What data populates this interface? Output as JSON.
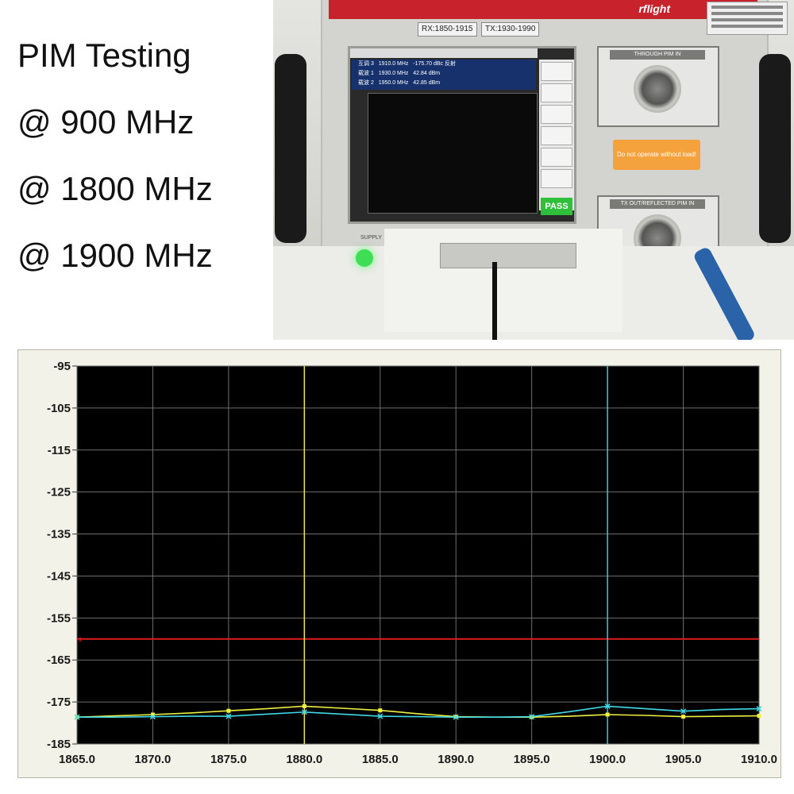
{
  "caption": {
    "lines": [
      "PIM Testing",
      "@ 900 MHz",
      "@ 1800 MHz",
      "@ 1900 MHz"
    ]
  },
  "photo": {
    "brand": "rflight",
    "band_rx": "RX:1850-1915",
    "band_tx": "TX:1930-1990",
    "screen_rows": [
      {
        "label": "互调 3",
        "freq": "1910.0 MHz",
        "value": "-175.70 dBc",
        "mode": "反射"
      },
      {
        "label": "载波 1",
        "freq": "1930.0 MHz",
        "value": "42.84 dBm",
        "mode": ""
      },
      {
        "label": "载波 2",
        "freq": "1950.0 MHz",
        "value": "42.85 dBm",
        "mode": ""
      }
    ],
    "pass_label": "PASS",
    "port_through": "THROUGH PIM IN",
    "port_tx": "TX OUT/REFLECTED PIM IN",
    "warning": "Do not operate without load!",
    "supply_label": "SUPPLY"
  },
  "chart_data": {
    "type": "line",
    "xlim": [
      1865.0,
      1910.0
    ],
    "ylim": [
      -185,
      -95
    ],
    "xticks": [
      "1865.0",
      "1870.0",
      "1875.0",
      "1880.0",
      "1885.0",
      "1890.0",
      "1895.0",
      "1900.0",
      "1905.0",
      "1910.0"
    ],
    "yticks": [
      "-95",
      "-105",
      "-115",
      "-125",
      "-135",
      "-145",
      "-155",
      "-165",
      "-175",
      "-185"
    ],
    "grid": true,
    "background": "#000000",
    "limit_line": {
      "y": -160,
      "color": "#e01b1b",
      "marker_label": "3"
    },
    "markers": [
      {
        "x": 1880.0,
        "color": "#e8e84a"
      },
      {
        "x": 1900.0,
        "color": "#3fc6d8"
      }
    ],
    "series": [
      {
        "color": "#f0f040",
        "x": [
          1865.0,
          1867.5,
          1870.0,
          1872.5,
          1875.0,
          1877.5,
          1880.0,
          1882.5,
          1885.0,
          1887.5,
          1890.0,
          1892.5,
          1895.0,
          1897.5,
          1900.0,
          1902.5,
          1905.0,
          1907.5,
          1910.0
        ],
        "y": [
          -178.6,
          -178.3,
          -178.0,
          -177.6,
          -177.1,
          -176.6,
          -176.0,
          -176.5,
          -177.0,
          -177.8,
          -178.5,
          -178.6,
          -178.6,
          -178.4,
          -178.0,
          -178.2,
          -178.5,
          -178.4,
          -178.3
        ]
      },
      {
        "color": "#40d8e8",
        "x": [
          1865.0,
          1867.5,
          1870.0,
          1872.5,
          1875.0,
          1877.5,
          1880.0,
          1882.5,
          1885.0,
          1887.5,
          1890.0,
          1892.5,
          1895.0,
          1897.5,
          1900.0,
          1902.5,
          1905.0,
          1907.5,
          1910.0
        ],
        "y": [
          -178.6,
          -178.6,
          -178.5,
          -178.4,
          -178.4,
          -177.9,
          -177.4,
          -177.9,
          -178.4,
          -178.5,
          -178.6,
          -178.6,
          -178.5,
          -177.3,
          -176.0,
          -176.6,
          -177.2,
          -176.8,
          -176.6
        ]
      }
    ]
  }
}
